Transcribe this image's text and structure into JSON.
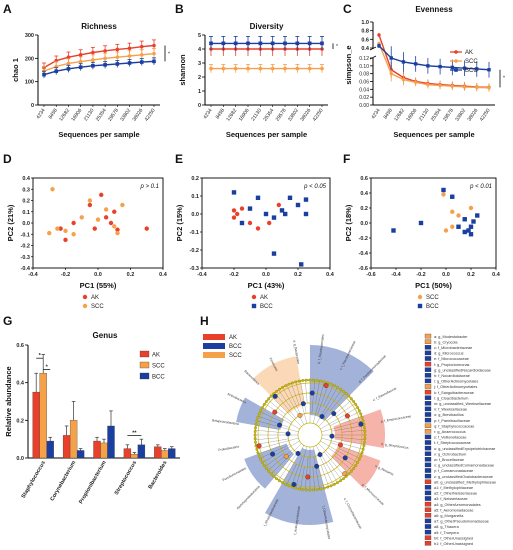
{
  "colors": {
    "AK": "#e8402a",
    "SCC": "#f5a14a",
    "BCC": "#1a3fa0",
    "ring": "#c9b800"
  },
  "panels": {
    "A": "A",
    "B": "B",
    "C": "C",
    "D": "D",
    "E": "E",
    "F": "F",
    "G": "G",
    "H": "H"
  },
  "chart_data": [
    {
      "id": "A",
      "type": "line",
      "title": "Richness",
      "xlabel": "Sequences per sample",
      "ylabel": "chao 1",
      "x": [
        4234,
        8458,
        12682,
        16906,
        21130,
        25354,
        29578,
        33802,
        38026,
        42250
      ],
      "ylim": [
        0,
        300
      ],
      "yticks": [
        0,
        100,
        200,
        300
      ],
      "sig": "*",
      "series": [
        {
          "name": "AK",
          "values": [
            160,
            190,
            205,
            215,
            225,
            232,
            238,
            243,
            250,
            255
          ],
          "err": [
            20,
            20,
            22,
            22,
            22,
            22,
            22,
            22,
            24,
            24
          ]
        },
        {
          "name": "SCC",
          "values": [
            145,
            165,
            178,
            186,
            193,
            200,
            205,
            210,
            215,
            220
          ],
          "err": [
            20,
            20,
            20,
            20,
            22,
            22,
            22,
            22,
            22,
            22
          ]
        },
        {
          "name": "BCC",
          "values": [
            130,
            145,
            155,
            162,
            168,
            172,
            176,
            180,
            184,
            187
          ],
          "err": [
            15,
            15,
            15,
            15,
            15,
            15,
            15,
            15,
            15,
            15
          ]
        }
      ]
    },
    {
      "id": "B",
      "type": "line",
      "title": "Diversity",
      "xlabel": "Sequences per sample",
      "ylabel": "shannon",
      "x": [
        4234,
        8458,
        12682,
        16906,
        21130,
        25354,
        29578,
        33802,
        38026,
        42250
      ],
      "ylim": [
        0,
        5
      ],
      "yticks": [
        0,
        1,
        2,
        3,
        4,
        5
      ],
      "sig": "*",
      "series": [
        {
          "name": "AK",
          "values": [
            4.0,
            4.0,
            4.0,
            4.0,
            4.0,
            4.0,
            4.0,
            4.0,
            4.0,
            4.0
          ],
          "err": [
            0.5,
            0.5,
            0.5,
            0.5,
            0.5,
            0.5,
            0.5,
            0.5,
            0.5,
            0.5
          ]
        },
        {
          "name": "SCC",
          "values": [
            2.6,
            2.6,
            2.6,
            2.6,
            2.6,
            2.6,
            2.6,
            2.6,
            2.6,
            2.6
          ],
          "err": [
            0.3,
            0.3,
            0.3,
            0.3,
            0.3,
            0.3,
            0.3,
            0.3,
            0.3,
            0.3
          ]
        },
        {
          "name": "BCC",
          "values": [
            4.4,
            4.4,
            4.4,
            4.4,
            4.4,
            4.4,
            4.4,
            4.4,
            4.4,
            4.4
          ],
          "err": [
            0.5,
            0.5,
            0.5,
            0.5,
            0.5,
            0.5,
            0.5,
            0.5,
            0.5,
            0.5
          ]
        }
      ]
    },
    {
      "id": "C",
      "type": "line",
      "title": "Evenness",
      "xlabel": "Sequences per sample",
      "ylabel": "simpson_e",
      "x": [
        4234,
        8458,
        12682,
        16906,
        21130,
        25354,
        29578,
        33802,
        38026,
        42250
      ],
      "yticks_low": [
        "0.00",
        "0.02",
        "0.04",
        "0.06",
        "0.08",
        "0.10",
        "0.12"
      ],
      "yticks_high": [
        "0.4",
        "0.6",
        "0.8",
        "1.0"
      ],
      "sig": "*",
      "legend": [
        "AK",
        "SCC",
        "BCC"
      ],
      "series": [
        {
          "name": "AK",
          "values": [
            0.7,
            0.09,
            0.07,
            0.06,
            0.055,
            0.052,
            0.05,
            0.048,
            0.046,
            0.045
          ],
          "err": [
            0.05,
            0.02,
            0.015,
            0.01,
            0.01,
            0.01,
            0.01,
            0.01,
            0.01,
            0.01
          ]
        },
        {
          "name": "SCC",
          "values": [
            0.5,
            0.08,
            0.065,
            0.058,
            0.052,
            0.05,
            0.048,
            0.046,
            0.045,
            0.044
          ],
          "err": [
            0.05,
            0.02,
            0.015,
            0.01,
            0.01,
            0.01,
            0.01,
            0.01,
            0.01,
            0.01
          ]
        },
        {
          "name": "BCC",
          "values": [
            0.45,
            0.12,
            0.11,
            0.105,
            0.1,
            0.098,
            0.096,
            0.094,
            0.092,
            0.09
          ],
          "err": [
            0.05,
            0.03,
            0.025,
            0.02,
            0.02,
            0.02,
            0.02,
            0.02,
            0.02,
            0.02
          ]
        }
      ]
    },
    {
      "id": "D",
      "type": "scatter",
      "xlabel": "PC1 (55%)",
      "ylabel": "PC2 (21%)",
      "annotation": "p > 0.1",
      "xlim": [
        -0.4,
        0.4
      ],
      "ylim": [
        -0.4,
        0.4
      ],
      "xticks": [
        "-0.4",
        "-0.2",
        "0.0",
        "0.2",
        "0.4"
      ],
      "yticks": [
        "-0.4",
        "-0.3",
        "-0.2",
        "-0.1",
        "0.0",
        "0.1",
        "0.2",
        "0.3",
        "0.4"
      ],
      "legend": [
        "AK",
        "SCC"
      ],
      "series": [
        {
          "name": "AK",
          "points": [
            [
              -0.23,
              -0.05
            ],
            [
              -0.2,
              -0.15
            ],
            [
              -0.05,
              0.16
            ],
            [
              -0.02,
              -0.05
            ],
            [
              0.05,
              0.05
            ],
            [
              0.08,
              0.0
            ],
            [
              0.1,
              0.1
            ],
            [
              0.12,
              -0.06
            ],
            [
              0.02,
              0.25
            ],
            [
              -0.15,
              0.0
            ],
            [
              0.3,
              -0.05
            ]
          ]
        },
        {
          "name": "SCC",
          "points": [
            [
              -0.28,
              0.3
            ],
            [
              -0.3,
              -0.09
            ],
            [
              -0.25,
              -0.05
            ],
            [
              -0.2,
              -0.07
            ],
            [
              -0.1,
              0.05
            ],
            [
              -0.05,
              0.2
            ],
            [
              0.0,
              0.03
            ],
            [
              0.05,
              0.12
            ],
            [
              0.1,
              -0.03
            ],
            [
              0.15,
              0.16
            ],
            [
              0.12,
              -0.09
            ],
            [
              -0.15,
              -0.1
            ]
          ]
        }
      ]
    },
    {
      "id": "E",
      "type": "scatter",
      "xlabel": "PC1 (43%)",
      "ylabel": "PC2 (15%)",
      "annotation": "p < 0.05",
      "xlim": [
        -0.4,
        0.4
      ],
      "ylim": [
        -0.3,
        0.2
      ],
      "xticks": [
        "-0.4",
        "-0.2",
        "0.0",
        "0.2",
        "0.4"
      ],
      "yticks": [
        "-0.3",
        "-0.2",
        "-0.1",
        "0.0",
        "0.1",
        "0.2"
      ],
      "legend": [
        "AK",
        "BCC"
      ],
      "series": [
        {
          "name": "AK",
          "points": [
            [
              -0.2,
              0.02
            ],
            [
              -0.18,
              0.0
            ],
            [
              -0.15,
              0.03
            ],
            [
              -0.1,
              -0.05
            ],
            [
              -0.05,
              -0.08
            ],
            [
              0.02,
              -0.05
            ],
            [
              0.08,
              0.05
            ],
            [
              -0.2,
              -0.02
            ]
          ]
        },
        {
          "name": "BCC",
          "points": [
            [
              -0.2,
              0.12
            ],
            [
              -0.1,
              0.03
            ],
            [
              -0.05,
              0.09
            ],
            [
              0.0,
              0.0
            ],
            [
              0.05,
              -0.02
            ],
            [
              0.1,
              0.02
            ],
            [
              0.12,
              0.0
            ],
            [
              0.15,
              0.09
            ],
            [
              0.2,
              0.05
            ],
            [
              0.25,
              0.08
            ],
            [
              0.25,
              0.0
            ],
            [
              0.05,
              -0.22
            ],
            [
              0.22,
              -0.28
            ],
            [
              -0.15,
              -0.05
            ]
          ]
        }
      ]
    },
    {
      "id": "F",
      "type": "scatter",
      "xlabel": "PC1 (50%)",
      "ylabel": "PC2 (18%)",
      "annotation": "p < 0.01",
      "xlim": [
        -0.6,
        0.4
      ],
      "ylim": [
        -0.6,
        0.6
      ],
      "xticks": [
        "-0.6",
        "-0.4",
        "-0.2",
        "0.0",
        "0.2",
        "0.4"
      ],
      "yticks": [
        "-0.6",
        "-0.4",
        "-0.2",
        "0.0",
        "0.2",
        "0.4",
        "0.6"
      ],
      "legend": [
        "SCC",
        "BCC"
      ],
      "series": [
        {
          "name": "SCC",
          "points": [
            [
              -0.02,
              0.38
            ],
            [
              0.05,
              0.15
            ],
            [
              0.1,
              0.1
            ],
            [
              0.15,
              0.05
            ],
            [
              0.05,
              -0.05
            ],
            [
              0.0,
              -0.1
            ],
            [
              0.2,
              0.2
            ]
          ]
        },
        {
          "name": "BCC",
          "points": [
            [
              -0.42,
              -0.1
            ],
            [
              -0.2,
              0.0
            ],
            [
              -0.02,
              0.44
            ],
            [
              0.05,
              0.35
            ],
            [
              0.1,
              -0.05
            ],
            [
              0.15,
              0.05
            ],
            [
              0.18,
              -0.1
            ],
            [
              0.2,
              -0.05
            ],
            [
              0.22,
              0.02
            ],
            [
              0.2,
              -0.15
            ],
            [
              0.25,
              0.1
            ],
            [
              0.15,
              -0.12
            ]
          ]
        }
      ]
    },
    {
      "id": "G",
      "type": "bar",
      "title": "Genus",
      "ylabel": "Relative abundance",
      "categories": [
        "Staphylococcus",
        "Corynebacterium",
        "Propionibacterium",
        "Streptococcus",
        "Bacteroides"
      ],
      "ylim": [
        0,
        0.6
      ],
      "yticks": [
        "0.0",
        "0.2",
        "0.4",
        "0.6"
      ],
      "series": [
        {
          "name": "AK",
          "values": [
            0.35,
            0.12,
            0.09,
            0.05,
            0.06
          ],
          "err": [
            0.1,
            0.05,
            0.02,
            0.02,
            0.01
          ]
        },
        {
          "name": "SCC",
          "values": [
            0.45,
            0.2,
            0.08,
            0.02,
            0.04
          ],
          "err": [
            0.1,
            0.1,
            0.02,
            0.01,
            0.01
          ]
        },
        {
          "name": "BCC",
          "values": [
            0.09,
            0.04,
            0.17,
            0.07,
            0.05
          ],
          "err": [
            0.02,
            0.01,
            0.08,
            0.03,
            0.01
          ]
        }
      ],
      "sig": [
        {
          "text": "*",
          "between": [
            0,
            1
          ],
          "cat": 0,
          "level": 0.53
        },
        {
          "text": "*",
          "between": [
            1,
            2
          ],
          "cat": 0,
          "level": 0.47
        },
        {
          "text": "**",
          "between": [
            0,
            2
          ],
          "cat": 3,
          "level": 0.12
        }
      ]
    },
    {
      "id": "H",
      "type": "cladogram",
      "legend": [
        "AK",
        "BCC",
        "SCC"
      ],
      "outer_labels": [
        "a: g_Bacteroides",
        "b: f_Flavobacteriales",
        "c: f_Flavobacteriaceae",
        "d: f_Porphyromonadaceae",
        "e: f_Rikenellaceae",
        "g: f_Enterococcaceae",
        "h: g_Streptococcus",
        "n: g_Neisseria",
        "p: f_Micrococcaceae",
        "s: f_Corynebacteriaceae",
        "f_OtherActinomycetales",
        "f_Actinomycetaceae",
        "f_Rhodobacteraceae",
        "Gammaproteobacteria",
        "Pseudomonadales",
        "Proteobacteria",
        "Betaproteobacteria",
        "Actinobacteria",
        "Bacteroidetes",
        "Firmicutes"
      ],
      "taxa": [
        {
          "group": "SCC",
          "label": "a: g_Modestobacter"
        },
        {
          "group": "SCC",
          "label": "b: g_Cryocola"
        },
        {
          "group": "BCC",
          "label": "c: f_Microbacteriaceae"
        },
        {
          "group": "BCC",
          "label": "d: g_Micrococcus"
        },
        {
          "group": "BCC",
          "label": "e: f_Micrococcaceae"
        },
        {
          "group": "AK",
          "label": "f: g_Propionicimonas"
        },
        {
          "group": "BCC",
          "label": "g: g_unclassifiedNocardioidaceae"
        },
        {
          "group": "BCC",
          "label": "h: f_Nocardioidaceae"
        },
        {
          "group": "BCC",
          "label": "i: g_OtherActinomycetales"
        },
        {
          "group": "SCC",
          "label": "j: f_OtherActinomycetales"
        },
        {
          "group": "AK",
          "label": "k: f_Sanguibacteraceae"
        },
        {
          "group": "BCC",
          "label": "l: g_Cloacibacterium"
        },
        {
          "group": "BCC",
          "label": "m: g_unclassified_Weeksellaceae"
        },
        {
          "group": "BCC",
          "label": "n: f_Weeksellaceae"
        },
        {
          "group": "BCC",
          "label": "o: g_Brevibacillus"
        },
        {
          "group": "BCC",
          "label": "p: f_Paenibacillaceae"
        },
        {
          "group": "SCC",
          "label": "q: f_Staphylococcaceae"
        },
        {
          "group": "SCC",
          "label": "r: g_Anaerococcus"
        },
        {
          "group": "BCC",
          "label": "s: f_Veillonellaceae"
        },
        {
          "group": "BCC",
          "label": "t: f_Streptococcaceae"
        },
        {
          "group": "BCC",
          "label": "u: g_unclassifiedErysipelotrichaceae"
        },
        {
          "group": "BCC",
          "label": "v: g_Ochrobactrum"
        },
        {
          "group": "BCC",
          "label": "w: f_Brucellaceae"
        },
        {
          "group": "BCC",
          "label": "x: g_unclassifiedComamonadaceae"
        },
        {
          "group": "BCC",
          "label": "y: f_Comamonadaceae"
        },
        {
          "group": "BCC",
          "label": "z: g_unclassifiedOxalobacteraceae"
        },
        {
          "group": "AK",
          "label": "a0: g_unclassified_Methylophilaceae"
        },
        {
          "group": "BCC",
          "label": "a1: f_Methylophilaceae"
        },
        {
          "group": "BCC",
          "label": "a2: f_OtherNeisseriaceae"
        },
        {
          "group": "BCC",
          "label": "a3: f_Neisseriaceae"
        },
        {
          "group": "AK",
          "label": "a4: g_OtherAeromonadales"
        },
        {
          "group": "AK",
          "label": "a5: f_Aeromonadaceae"
        },
        {
          "group": "AK",
          "label": "a6: g_Morganella"
        },
        {
          "group": "BCC",
          "label": "a7: g_OtherPseudomonadaceae"
        },
        {
          "group": "BCC",
          "label": "a8: g_Thauera"
        },
        {
          "group": "BCC",
          "label": "a9: f_Truepera"
        },
        {
          "group": "AK",
          "label": "b0: f_OtherUnassigned"
        },
        {
          "group": "AK",
          "label": "b1: f_OtherUnassigned"
        }
      ]
    }
  ]
}
